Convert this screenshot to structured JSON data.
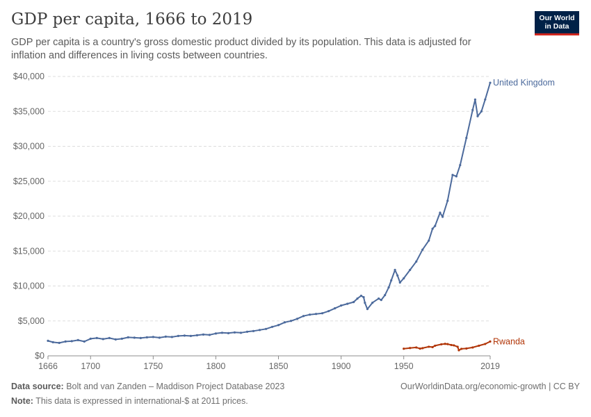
{
  "header": {
    "title": "GDP per capita, 1666 to 2019",
    "subtitle": "GDP per capita is a country's gross domestic product divided by its population. This data is adjusted for inflation and differences in living costs between countries."
  },
  "logo": {
    "line1": "Our World",
    "line2": "in Data",
    "bg_color": "#002147",
    "accent_color": "#ce261e"
  },
  "footer": {
    "source_label": "Data source:",
    "source_text": "Bolt and van Zanden – Maddison Project Database 2023",
    "url_text": "OurWorldinData.org/economic-growth | CC BY",
    "note_label": "Note:",
    "note_text": "This data is expressed in international-$ at 2011 prices."
  },
  "chart_data": {
    "type": "line",
    "title": "GDP per capita, 1666 to 2019",
    "xlabel": "",
    "ylabel": "",
    "xlim": [
      1666,
      2019
    ],
    "ylim": [
      0,
      40000
    ],
    "grid": true,
    "legend": "inline labels at line ends",
    "x_ticks": [
      1666,
      1700,
      1750,
      1800,
      1850,
      1900,
      1950,
      2019
    ],
    "y_ticks": [
      0,
      5000,
      10000,
      15000,
      20000,
      25000,
      30000,
      35000,
      40000
    ],
    "y_tick_labels": [
      "$0",
      "$5,000",
      "$10,000",
      "$15,000",
      "$20,000",
      "$25,000",
      "$30,000",
      "$35,000",
      "$40,000"
    ],
    "series": [
      {
        "name": "United Kingdom",
        "color": "#4c6a9c",
        "points": [
          [
            1666,
            2150
          ],
          [
            1670,
            1950
          ],
          [
            1675,
            1850
          ],
          [
            1680,
            2050
          ],
          [
            1685,
            2100
          ],
          [
            1690,
            2250
          ],
          [
            1695,
            2050
          ],
          [
            1700,
            2450
          ],
          [
            1705,
            2550
          ],
          [
            1710,
            2400
          ],
          [
            1715,
            2550
          ],
          [
            1720,
            2350
          ],
          [
            1725,
            2450
          ],
          [
            1730,
            2650
          ],
          [
            1735,
            2600
          ],
          [
            1740,
            2550
          ],
          [
            1745,
            2650
          ],
          [
            1750,
            2700
          ],
          [
            1755,
            2600
          ],
          [
            1760,
            2750
          ],
          [
            1765,
            2700
          ],
          [
            1770,
            2850
          ],
          [
            1775,
            2900
          ],
          [
            1780,
            2850
          ],
          [
            1785,
            2950
          ],
          [
            1790,
            3050
          ],
          [
            1795,
            3000
          ],
          [
            1800,
            3200
          ],
          [
            1805,
            3300
          ],
          [
            1810,
            3250
          ],
          [
            1815,
            3350
          ],
          [
            1820,
            3300
          ],
          [
            1825,
            3450
          ],
          [
            1830,
            3550
          ],
          [
            1835,
            3700
          ],
          [
            1840,
            3850
          ],
          [
            1845,
            4150
          ],
          [
            1850,
            4400
          ],
          [
            1855,
            4800
          ],
          [
            1860,
            5000
          ],
          [
            1865,
            5300
          ],
          [
            1870,
            5700
          ],
          [
            1875,
            5900
          ],
          [
            1880,
            6000
          ],
          [
            1885,
            6100
          ],
          [
            1890,
            6400
          ],
          [
            1895,
            6800
          ],
          [
            1900,
            7200
          ],
          [
            1905,
            7450
          ],
          [
            1910,
            7700
          ],
          [
            1913,
            8200
          ],
          [
            1916,
            8600
          ],
          [
            1918,
            8400
          ],
          [
            1919,
            7600
          ],
          [
            1921,
            6700
          ],
          [
            1925,
            7600
          ],
          [
            1930,
            8200
          ],
          [
            1932,
            8000
          ],
          [
            1935,
            8700
          ],
          [
            1938,
            9800
          ],
          [
            1940,
            10800
          ],
          [
            1943,
            12300
          ],
          [
            1945,
            11500
          ],
          [
            1947,
            10500
          ],
          [
            1950,
            11100
          ],
          [
            1955,
            12300
          ],
          [
            1960,
            13500
          ],
          [
            1965,
            15200
          ],
          [
            1970,
            16500
          ],
          [
            1973,
            18200
          ],
          [
            1975,
            18600
          ],
          [
            1979,
            20500
          ],
          [
            1981,
            19900
          ],
          [
            1985,
            22200
          ],
          [
            1989,
            25900
          ],
          [
            1992,
            25700
          ],
          [
            1995,
            27300
          ],
          [
            2000,
            31200
          ],
          [
            2005,
            35200
          ],
          [
            2007,
            36700
          ],
          [
            2009,
            34300
          ],
          [
            2012,
            35000
          ],
          [
            2015,
            36700
          ],
          [
            2019,
            39100
          ]
        ]
      },
      {
        "name": "Rwanda",
        "color": "#b13507",
        "points": [
          [
            1950,
            1020
          ],
          [
            1955,
            1120
          ],
          [
            1960,
            1200
          ],
          [
            1963,
            1030
          ],
          [
            1965,
            1100
          ],
          [
            1970,
            1300
          ],
          [
            1973,
            1250
          ],
          [
            1975,
            1450
          ],
          [
            1980,
            1650
          ],
          [
            1983,
            1720
          ],
          [
            1985,
            1680
          ],
          [
            1988,
            1550
          ],
          [
            1990,
            1500
          ],
          [
            1993,
            1300
          ],
          [
            1994,
            800
          ],
          [
            1996,
            1000
          ],
          [
            2000,
            1050
          ],
          [
            2005,
            1200
          ],
          [
            2010,
            1450
          ],
          [
            2015,
            1700
          ],
          [
            2019,
            2050
          ]
        ]
      }
    ]
  }
}
